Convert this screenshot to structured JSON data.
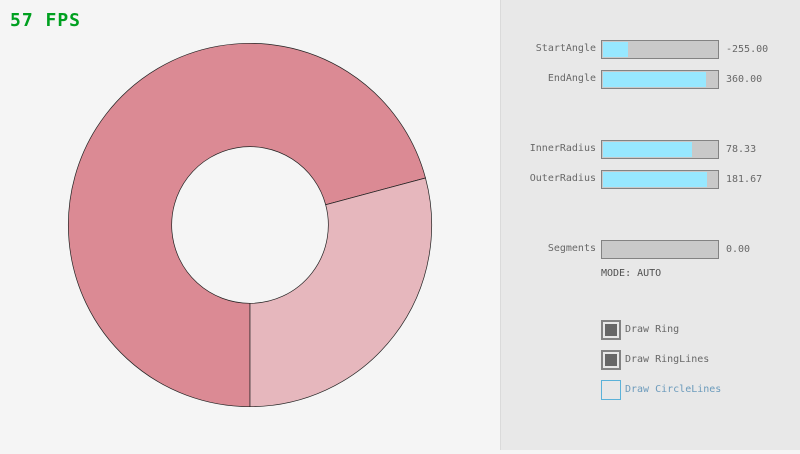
{
  "fps_label": "57 FPS",
  "colors": {
    "ring_dark": "#db8a94",
    "ring_light": "#e6b7bd",
    "slider_fill": "#97e8ff",
    "fps": "#00a020"
  },
  "ring": {
    "start_angle": -255,
    "end_angle": 360,
    "inner_radius": 78.33,
    "outer_radius": 181.67
  },
  "sliders": [
    {
      "label": "StartAngle",
      "value": "-255.00",
      "fraction": 0.217
    },
    {
      "label": "EndAngle",
      "value": "360.00",
      "fraction": 0.9
    },
    {
      "label": "InnerRadius",
      "value": "78.33",
      "fraction": 0.783
    },
    {
      "label": "OuterRadius",
      "value": "181.67",
      "fraction": 0.908
    },
    {
      "label": "Segments",
      "value": "0.00",
      "fraction": 0
    }
  ],
  "mode_label": "MODE: AUTO",
  "checkboxes": [
    {
      "label": "Draw Ring",
      "checked": true
    },
    {
      "label": "Draw RingLines",
      "checked": true
    },
    {
      "label": "Draw CircleLines",
      "checked": false
    }
  ]
}
